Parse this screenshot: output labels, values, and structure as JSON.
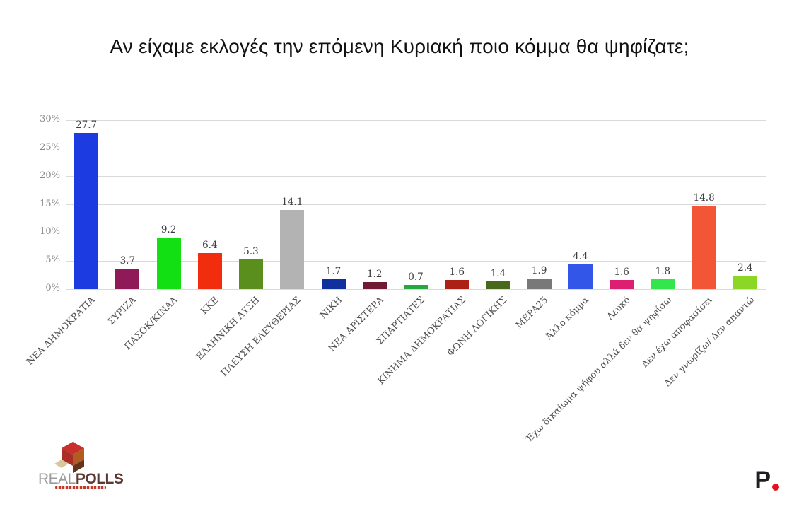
{
  "title": "Αν είχαμε εκλογές την επόμενη Κυριακή ποιο κόμμα θα ψηφίζατε;",
  "chart_data": {
    "type": "bar",
    "title": "Αν είχαμε εκλογές την επόμενη Κυριακή ποιο κόμμα θα ψηφίζατε;",
    "categories": [
      "ΝΕΑ ΔΗΜΟΚΡΑΤΙΑ",
      "ΣΥΡΙΖΑ",
      "ΠΑΣΟΚ/ΚΙΝΑΛ",
      "ΚΚΕ",
      "ΕΛΛΗΝΙΚΗ ΛΥΣΗ",
      "ΠΛΕΥΣΗ ΕΛΕΥΘΕΡΙΑΣ",
      "ΝΙΚΗ",
      "ΝΕΑ ΑΡΙΣΤΕΡΑ",
      "ΣΠΑΡΤΙΑΤΕΣ",
      "ΚΙΝΗΜΑ ΔΗΜΟΚΡΑΤΙΑΣ",
      "ΦΩΝΗ ΛΟΓΙΚΗΣ",
      "ΜΕΡΑ25",
      "Άλλο κόμμα",
      "Λευκό",
      "Έχω δικαίωμα ψήφου αλλά δεν θα ψηφίσω",
      "Δεν έχω αποφασίσει",
      "Δεν γνωρίζω/ Δεν απαντώ"
    ],
    "values": [
      27.7,
      3.7,
      9.2,
      6.4,
      5.3,
      14.1,
      1.7,
      1.2,
      0.7,
      1.6,
      1.4,
      1.9,
      4.4,
      1.6,
      1.8,
      14.8,
      2.4
    ],
    "bar_colors": [
      "#1c3be0",
      "#8f1a57",
      "#12e012",
      "#f22d0e",
      "#5a8f1d",
      "#b3b3b3",
      "#10309d",
      "#701a33",
      "#27a83e",
      "#ad2014",
      "#48691c",
      "#787878",
      "#3257e8",
      "#dc1f70",
      "#33e64d",
      "#f25636",
      "#8cd626"
    ],
    "xlabel": "",
    "ylabel": "",
    "ylim": [
      0,
      30
    ],
    "yticks": [
      "0%",
      "5%",
      "10%",
      "15%",
      "20%",
      "25%",
      "30%"
    ],
    "grid": true,
    "value_labels": true,
    "legend": "none"
  },
  "footer": {
    "realpolls": {
      "real": "REAL",
      "polls": "POLLS"
    },
    "plogo": {
      "letter": "P"
    }
  },
  "colors": {
    "background": "#ffffff",
    "gridline": "#dadada",
    "tick_text": "#8a8a8a",
    "value_text": "#3d3d3d",
    "logo_red": "#c9302c",
    "logo_brown": "#b05c22",
    "logo_tan": "#d9c79c",
    "logo_dark_brown": "#63351a",
    "p_dot_red": "#e8101e"
  }
}
